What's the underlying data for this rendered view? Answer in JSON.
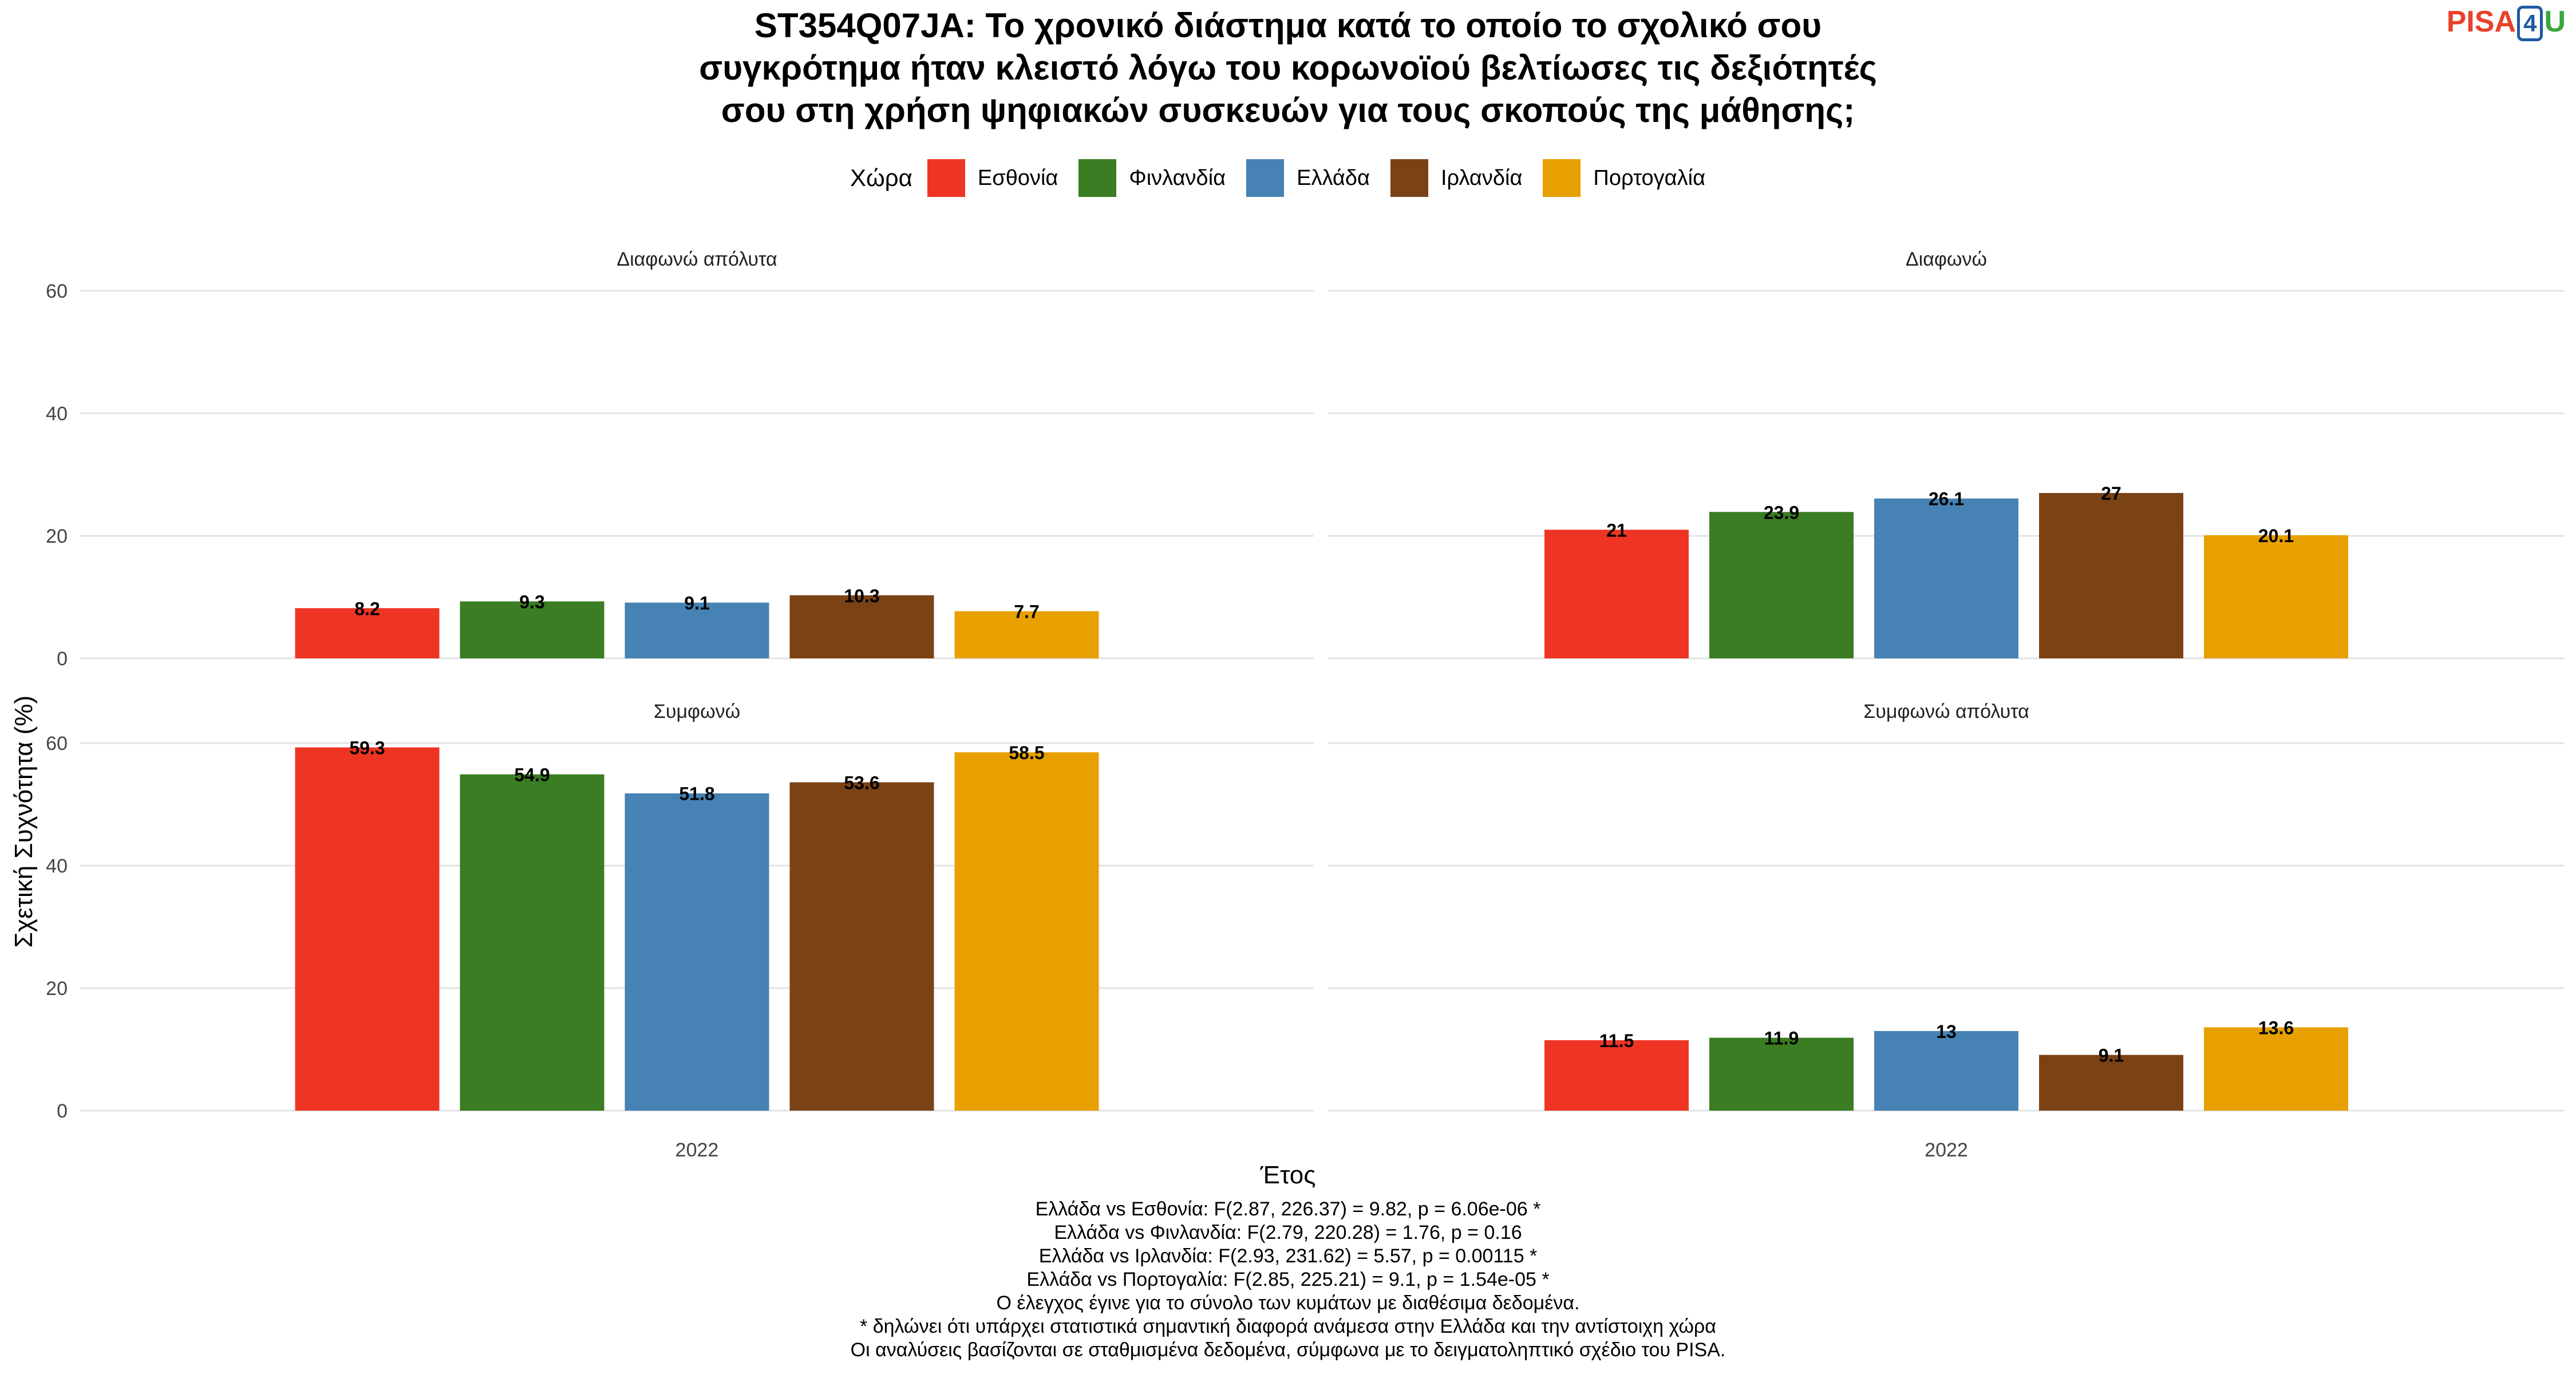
{
  "title_lines": [
    "ST354Q07JA: Το χρονικό διάστημα κατά το οποίο το σχολικό σου",
    "συγκρότημα ήταν κλειστό λόγω του κορωνοϊού βελτίωσες τις δεξιότητές",
    "σου στη χρήση ψηφιακών συσκευών για τους σκοπούς της μάθησης;"
  ],
  "logo": {
    "part1": "PISA",
    "part2": "4",
    "part3": "U"
  },
  "legend": {
    "title": "Χώρα",
    "items": [
      {
        "label": "Εσθονία",
        "color": "#ee3524"
      },
      {
        "label": "Φινλανδία",
        "color": "#3a7d22"
      },
      {
        "label": "Ελλάδα",
        "color": "#4682b4"
      },
      {
        "label": "Ιρλανδία",
        "color": "#7b4215"
      },
      {
        "label": "Πορτογαλία",
        "color": "#e8a000"
      }
    ]
  },
  "xlabel": "Έτος",
  "ylabel": "Σχετική Συχνότητα (%)",
  "notes": [
    "Ελλάδα vs Εσθονία: F(2.87, 226.37) = 9.82, p = 6.06e-06 *",
    "Ελλάδα vs Φινλανδία: F(2.79, 220.28) = 1.76, p = 0.16",
    "Ελλάδα vs Ιρλανδία: F(2.93, 231.62) = 5.57, p = 0.00115 *",
    "Ελλάδα vs Πορτογαλία: F(2.85, 225.21) = 9.1, p = 1.54e-05 *",
    "Ο έλεγχος έγινε για το σύνολο των κυμάτων με διαθέσιμα δεδομένα.",
    "* δηλώνει ότι υπάρχει στατιστικά σημαντική διαφορά ανάμεσα στην Ελλάδα και την αντίστοιχη χώρα",
    "Οι αναλύσεις βασίζονται σε σταθμισμένα δεδομένα, σύμφωνα με το δειγματοληπτικό σχέδιο του PISA."
  ],
  "chart_data": {
    "type": "bar",
    "categories": [
      "2022"
    ],
    "ylim": [
      0,
      60
    ],
    "yticks": [
      0,
      20,
      40,
      60
    ],
    "grid": true,
    "legend_position": "top",
    "series_names": [
      "Εσθονία",
      "Φινλανδία",
      "Ελλάδα",
      "Ιρλανδία",
      "Πορτογαλία"
    ],
    "facets": [
      {
        "label": "Διαφωνώ απόλυτα",
        "values": [
          8.2,
          9.3,
          9.1,
          10.3,
          7.7
        ]
      },
      {
        "label": "Διαφωνώ",
        "values": [
          21,
          23.9,
          26.1,
          27,
          20.1
        ]
      },
      {
        "label": "Συμφωνώ",
        "values": [
          59.3,
          54.9,
          51.8,
          53.6,
          58.5
        ]
      },
      {
        "label": "Συμφωνώ απόλυτα",
        "values": [
          11.5,
          11.9,
          13,
          9.1,
          13.6
        ]
      }
    ]
  }
}
